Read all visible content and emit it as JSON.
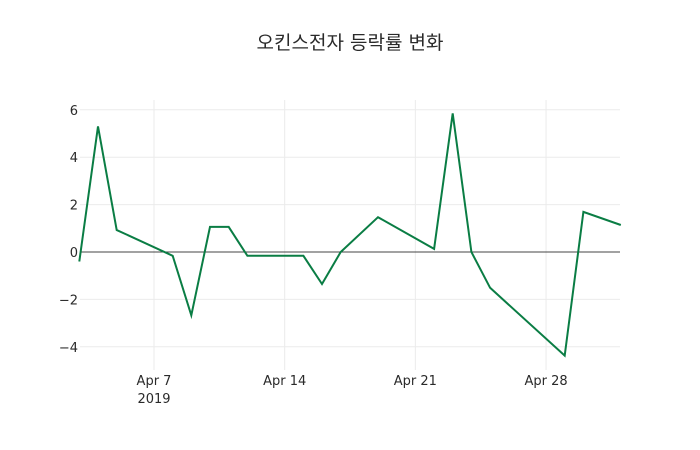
{
  "chart_data": {
    "type": "line",
    "title": "오킨스전자 등락률 변화",
    "xlabel": "",
    "ylabel": "",
    "x": [
      "2019-04-03",
      "2019-04-04",
      "2019-04-05",
      "2019-04-08",
      "2019-04-09",
      "2019-04-10",
      "2019-04-11",
      "2019-04-12",
      "2019-04-15",
      "2019-04-16",
      "2019-04-17",
      "2019-04-19",
      "2019-04-22",
      "2019-04-23",
      "2019-04-24",
      "2019-04-25",
      "2019-04-29",
      "2019-04-30",
      "2019-05-02"
    ],
    "series": [
      {
        "name": "등락률",
        "color": "#0a7d44",
        "values": [
          -0.4,
          5.3,
          0.93,
          -0.16,
          -2.67,
          1.06,
          1.06,
          -0.16,
          -0.16,
          -1.35,
          0.0,
          1.47,
          0.13,
          5.85,
          0.0,
          -1.51,
          -4.37,
          1.69,
          1.14
        ]
      }
    ],
    "ylim": [
      -4.9,
      6.4
    ],
    "yticks": [
      6,
      4,
      2,
      0,
      -2,
      -4
    ],
    "ytick_labels": [
      "6",
      "4",
      "2",
      "0",
      "−2",
      "−4"
    ],
    "xticks": [
      "2019-04-07",
      "2019-04-14",
      "2019-04-21",
      "2019-04-28"
    ],
    "xtick_labels": [
      "Apr 7",
      "Apr 14",
      "Apr 21",
      "Apr 28"
    ],
    "xtick_sublabel": "2019",
    "grid": true,
    "zeroline": true,
    "legend": false
  }
}
